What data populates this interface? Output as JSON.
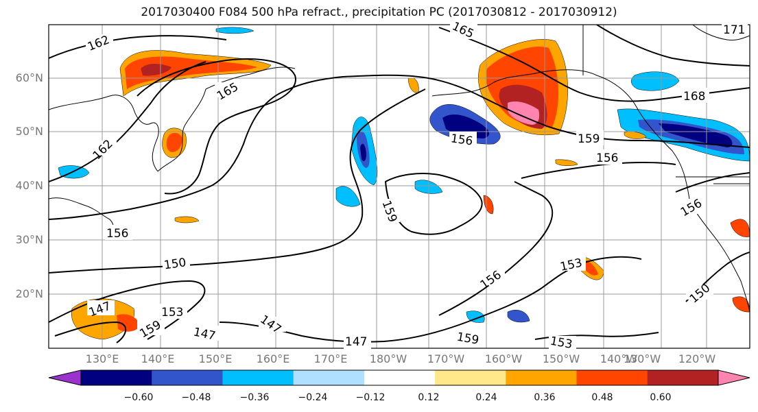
{
  "title": "2017030400 F084 500 hPa refract., precipitation PC (2017030812 - 2017030912)",
  "lat_labels": [
    "60°N",
    "50°N",
    "40°N",
    "30°N",
    "20°N"
  ],
  "lon_labels": [
    "130°E",
    "140°E",
    "150°E",
    "160°E",
    "170°E",
    "180°W",
    "170°W",
    "160°W",
    "150°W",
    "140°W",
    "130°W",
    "120°W"
  ],
  "colorbar": {
    "colors": [
      "#9933cc",
      "#000080",
      "#3355cc",
      "#00bfff",
      "#b0e0ff",
      "#ffffff",
      "#ffe88a",
      "#ffa500",
      "#ff4500",
      "#b22222",
      "#ff85b0"
    ],
    "tick_labels": [
      "−0.60",
      "−0.48",
      "−0.36",
      "−0.24",
      "−0.12",
      "0.12",
      "0.24",
      "0.36",
      "0.48",
      "0.60"
    ]
  },
  "contour_labels": [
    "162",
    "165",
    "162",
    "156",
    "150",
    "147",
    "159",
    "153",
    "147",
    "147",
    "159",
    "156",
    "156",
    "159",
    "168",
    "165",
    "156",
    "153",
    "156",
    "150",
    "147",
    "171",
    "159",
    "153"
  ],
  "colors": {
    "line": "#000000",
    "grid": "#999999",
    "tick": "#777777"
  }
}
